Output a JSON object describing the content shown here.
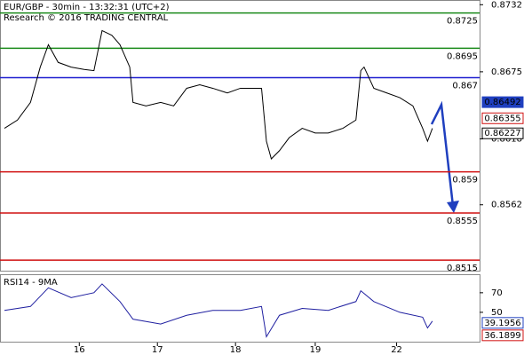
{
  "chart_data": [
    {
      "type": "line",
      "title": "EUR/GBP - 30min - 13:32:31 (UTC+2)",
      "subtitle": "Research © 2016 TRADING CENTRAL",
      "x": [
        0,
        8,
        16,
        22,
        27,
        33,
        41,
        49,
        55,
        60,
        66,
        71,
        77,
        79,
        87,
        96,
        104,
        112,
        120,
        128,
        137,
        145,
        153,
        158,
        161,
        164,
        169,
        175,
        183,
        191,
        199,
        208,
        216,
        219,
        221,
        227,
        235,
        243,
        251,
        257,
        260,
        263
      ],
      "values": [
        0.8627,
        0.8634,
        0.8649,
        0.8679,
        0.8698,
        0.8683,
        0.8679,
        0.8677,
        0.8676,
        0.871,
        0.8706,
        0.8698,
        0.8679,
        0.8649,
        0.8646,
        0.8649,
        0.8646,
        0.8661,
        0.8664,
        0.8661,
        0.8657,
        0.8661,
        0.8661,
        0.8661,
        0.8616,
        0.8601,
        0.8608,
        0.8619,
        0.8627,
        0.8623,
        0.8623,
        0.8627,
        0.8634,
        0.8676,
        0.8679,
        0.8661,
        0.8657,
        0.8653,
        0.8646,
        0.8627,
        0.8616,
        0.8627
      ],
      "color": "#000000",
      "xlim": [
        0,
        292
      ],
      "ylim": [
        0.8506,
        0.8736
      ],
      "xticks": [
        {
          "value": 46,
          "label": "16"
        },
        {
          "value": 94,
          "label": "17"
        },
        {
          "value": 142,
          "label": "18"
        },
        {
          "value": 191,
          "label": "19"
        },
        {
          "value": 241,
          "label": "22"
        }
      ],
      "yticks": [
        0.8732,
        0.8675,
        0.8618,
        0.8562
      ],
      "levels": [
        {
          "value": 0.8725,
          "color": "#1a8a1a"
        },
        {
          "value": 0.8695,
          "color": "#1a8a1a"
        },
        {
          "value": 0.867,
          "color": "#1f1fd0"
        },
        {
          "value": 0.859,
          "color": "#d01010"
        },
        {
          "value": 0.8555,
          "color": "#d01010"
        },
        {
          "value": 0.8515,
          "color": "#d01010"
        }
      ],
      "price_labels": [
        {
          "value": 0.86492,
          "color": "#1f3fbf",
          "filled": true
        },
        {
          "value": 0.86355,
          "color": "#d01010",
          "filled": false
        },
        {
          "value": 0.86227,
          "color": "#000000",
          "filled": false
        }
      ]
    },
    {
      "type": "line",
      "title": "RSI14 - 9MA",
      "x": [
        0,
        16,
        27,
        41,
        55,
        60,
        71,
        79,
        96,
        112,
        128,
        145,
        158,
        161,
        169,
        183,
        199,
        216,
        219,
        227,
        243,
        257,
        260,
        263
      ],
      "values": [
        52,
        56,
        75,
        65,
        70,
        79,
        61,
        43,
        38,
        47,
        52,
        52,
        56,
        25,
        47,
        54,
        52,
        61,
        72,
        61,
        50,
        45,
        34,
        41
      ],
      "color": "#1f1fa0",
      "xlim": [
        0,
        292
      ],
      "ylim": [
        20,
        88
      ],
      "yticks": [
        70,
        50
      ],
      "price_labels": [
        {
          "value": 39.1956,
          "color": "#1f3fbf",
          "filled": false
        },
        {
          "value": 36.1899,
          "color": "#d01010",
          "filled": false
        }
      ]
    }
  ]
}
